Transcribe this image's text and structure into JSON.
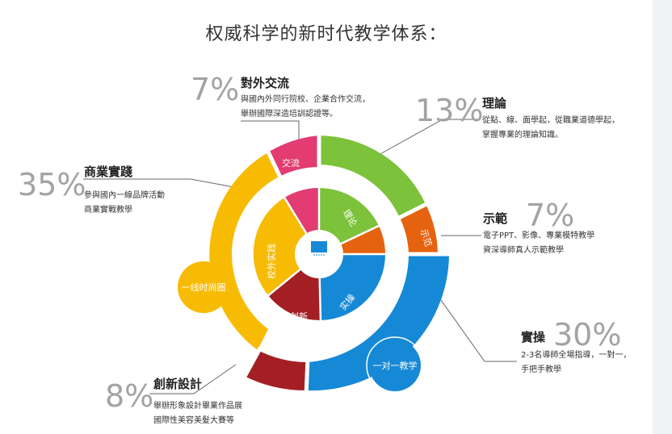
{
  "title": "权威科学的新时代教学体系：",
  "colors": {
    "green": "#7cc23a",
    "orange": "#e5620e",
    "blue": "#1689d6",
    "red": "#a31f24",
    "yellow": "#f8bb04",
    "pink": "#e23c72",
    "grey_text": "#a3a3a3"
  },
  "segments": {
    "exchange": {
      "percent": "7%",
      "heading": "對外交流",
      "lines": [
        "與國內外同行院校、企業合作交流，",
        "舉辦國際深造培訓認證等。"
      ],
      "ring_label": "交流"
    },
    "theory": {
      "percent": "13%",
      "heading": "理論",
      "lines": [
        "從點、線、面學起，從職業道德學起，",
        "掌握專業的理論知識。"
      ],
      "ring_label": "理论"
    },
    "demo": {
      "percent": "7%",
      "heading": "示範",
      "lines": [
        "電子PPT、影像、專業模特教學",
        "資深導師真人示範教學"
      ],
      "ring_label": "示范"
    },
    "practice": {
      "percent": "30%",
      "heading": "實操",
      "lines": [
        "2-3名導師全場指導，一對一，",
        "手把手教學"
      ],
      "ring_label": "实操"
    },
    "innovation": {
      "percent": "8%",
      "heading": "創新設計",
      "lines": [
        "舉辦形象設計畢業作品展",
        "國際性美容美髮大賽等"
      ],
      "ring_label": "创新"
    },
    "business": {
      "percent": "35%",
      "heading": "商業實踐",
      "lines": [
        "參與國內一線品牌活動",
        "商業實戰教學"
      ],
      "ring_label": "校外实践"
    }
  },
  "bubbles": {
    "frontline": "一线时尚圈",
    "one_on_one": "一对一教学"
  }
}
